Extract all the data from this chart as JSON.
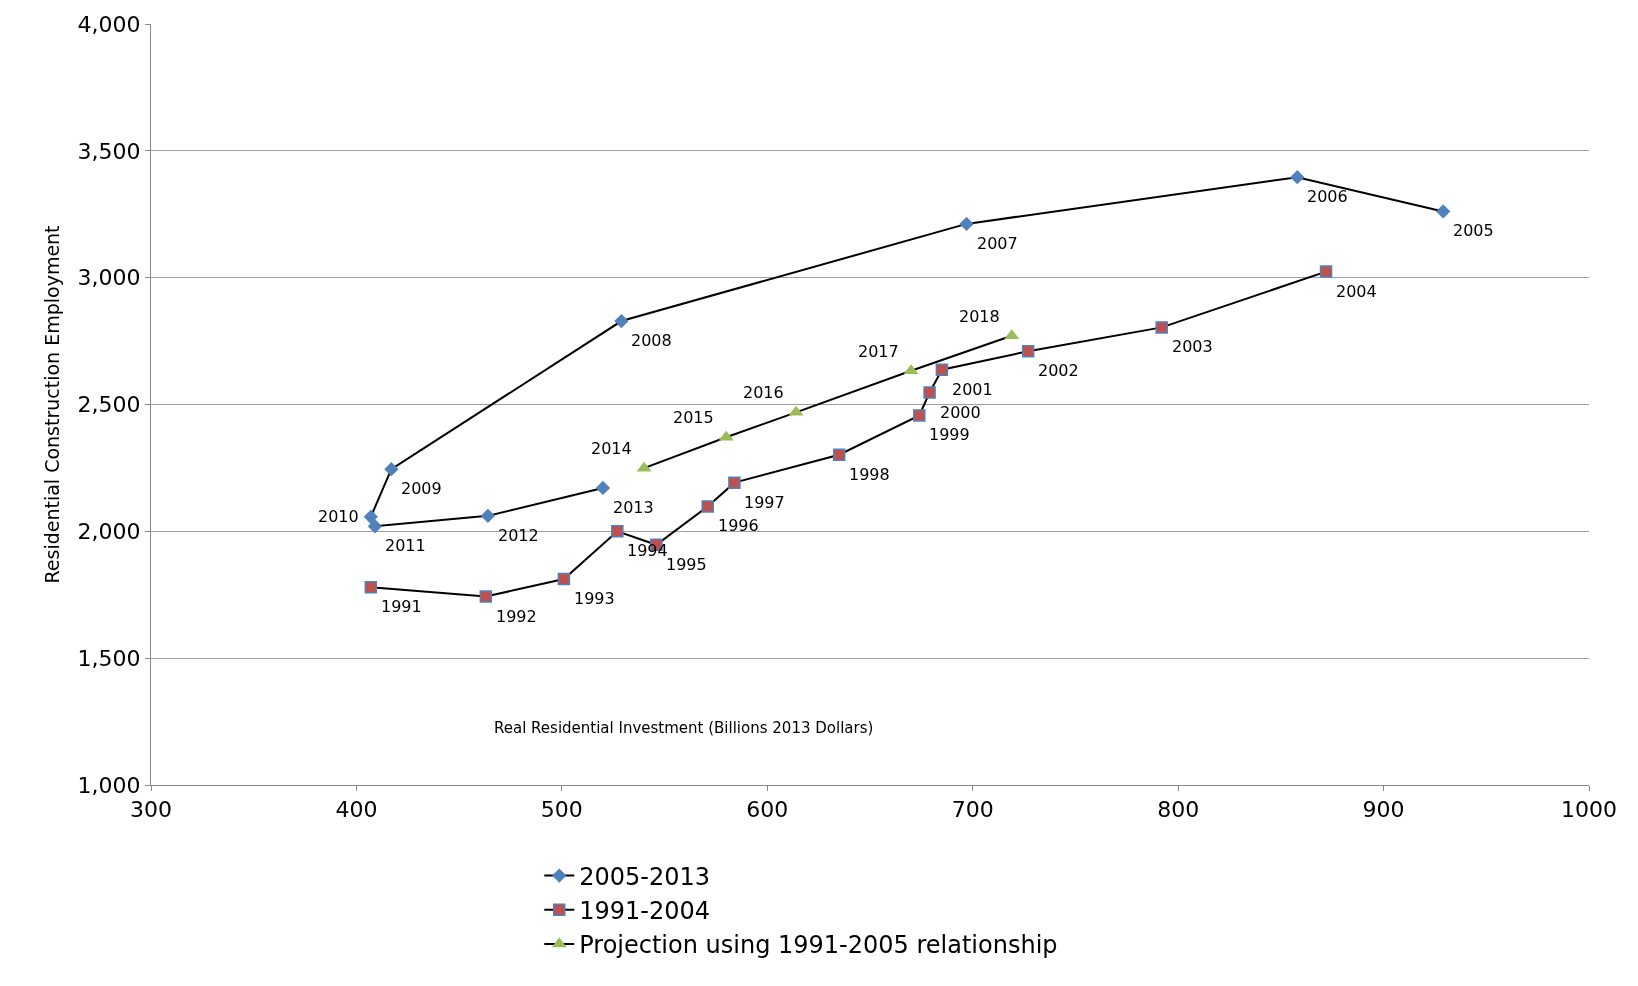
{
  "chart_data": {
    "type": "line",
    "xlabel": "Real Residential Investment (Billions 2013 Dollars)",
    "ylabel": "Residential Construction Employment",
    "xlim": [
      300,
      1000
    ],
    "xticks": [
      300,
      400,
      500,
      600,
      700,
      800,
      900,
      1000
    ],
    "ylim": [
      1000,
      4000
    ],
    "yticks": [
      {
        "value": 1000,
        "label": "1,000"
      },
      {
        "value": 1500,
        "label": "1,500"
      },
      {
        "value": 2000,
        "label": "2,000"
      },
      {
        "value": 2500,
        "label": "2,500"
      },
      {
        "value": 3000,
        "label": "3,000"
      },
      {
        "value": 3500,
        "label": "3,500"
      },
      {
        "value": 4000,
        "label": "4,000"
      }
    ],
    "grid": "y",
    "legend": "bottom",
    "line_style": "solid",
    "series": [
      {
        "name": "2005-2013",
        "color": "#4f81bd",
        "marker": "diamond",
        "x": [
          929,
          858,
          697,
          529,
          417,
          407,
          409,
          464,
          520
        ],
        "values": [
          3261,
          3396,
          3212,
          2829,
          2245,
          2057,
          2020,
          2061,
          2171
        ]
      },
      {
        "name": "1991-2004",
        "color": "#c0504d",
        "marker": "square",
        "x": [
          407,
          463,
          501,
          527,
          546,
          571,
          584,
          635,
          674,
          679,
          685,
          727,
          792,
          872
        ],
        "values": [
          1780,
          1743,
          1812,
          2000,
          1947,
          2098,
          2192,
          2302,
          2457,
          2547,
          2637,
          2710,
          2804,
          3024
        ]
      },
      {
        "name": "Projection using 1991-2005 relationship",
        "color": "#9bbb59",
        "marker": "triangle",
        "x": [
          540,
          580,
          614,
          670,
          719
        ],
        "values": [
          2249,
          2371,
          2469,
          2633,
          2771
        ]
      }
    ],
    "annotations": [
      {
        "text": "2005",
        "x": 929,
        "y": 3261
      },
      {
        "text": "2006",
        "x": 858,
        "y": 3396
      },
      {
        "text": "2007",
        "x": 697,
        "y": 3212
      },
      {
        "text": "2008",
        "x": 529,
        "y": 2829
      },
      {
        "text": "2009",
        "x": 417,
        "y": 2245
      },
      {
        "text": "2010",
        "x": 407,
        "y": 2057
      },
      {
        "text": "2011",
        "x": 409,
        "y": 2020
      },
      {
        "text": "2012",
        "x": 464,
        "y": 2061
      },
      {
        "text": "2013",
        "x": 520,
        "y": 2171
      },
      {
        "text": "1991",
        "x": 407,
        "y": 1780
      },
      {
        "text": "1992",
        "x": 463,
        "y": 1743
      },
      {
        "text": "1993",
        "x": 501,
        "y": 1812
      },
      {
        "text": "1994",
        "x": 527,
        "y": 2000
      },
      {
        "text": "1995",
        "x": 546,
        "y": 1947
      },
      {
        "text": "1996",
        "x": 571,
        "y": 2098
      },
      {
        "text": "1997",
        "x": 584,
        "y": 2192
      },
      {
        "text": "1998",
        "x": 635,
        "y": 2302
      },
      {
        "text": "1999",
        "x": 674,
        "y": 2457
      },
      {
        "text": "2000",
        "x": 679,
        "y": 2547
      },
      {
        "text": "2001",
        "x": 685,
        "y": 2637
      },
      {
        "text": "2002",
        "x": 727,
        "y": 2710
      },
      {
        "text": "2003",
        "x": 792,
        "y": 2804
      },
      {
        "text": "2004",
        "x": 872,
        "y": 3024
      },
      {
        "text": "2014",
        "x": 540,
        "y": 2249
      },
      {
        "text": "2015",
        "x": 580,
        "y": 2371
      },
      {
        "text": "2016",
        "x": 614,
        "y": 2469
      },
      {
        "text": "2017",
        "x": 670,
        "y": 2633
      },
      {
        "text": "2018",
        "x": 719,
        "y": 2771
      }
    ]
  }
}
